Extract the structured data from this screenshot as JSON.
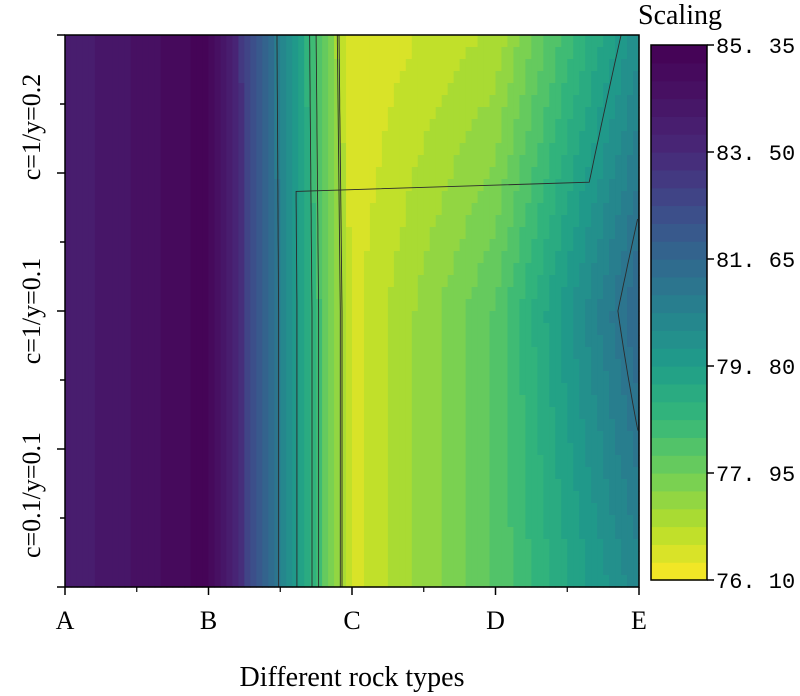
{
  "chart_data": {
    "type": "heatmap",
    "title": "",
    "xlabel": "Different rock types",
    "ylabel": "",
    "x_categories": [
      "A",
      "B",
      "C",
      "D",
      "E"
    ],
    "y_categories": [
      "c=0.1/y=0.1",
      "c=1/y=0.1",
      "c=1/y=0.2"
    ],
    "z": [
      [
        83.8,
        85.2,
        76.6,
        78.3,
        80.6
      ],
      [
        83.8,
        85.2,
        76.6,
        78.3,
        81.7
      ],
      [
        83.8,
        85.2,
        76.4,
        77.1,
        80.3
      ]
    ],
    "colorbar": {
      "title": "Scaling",
      "min": 76.1,
      "max": 85.35,
      "tick_labels": [
        "85. 35",
        "83. 50",
        "81. 65",
        "79. 80",
        "77. 95",
        "76. 10"
      ],
      "tick_values": [
        85.35,
        83.5,
        81.65,
        79.8,
        77.95,
        76.1
      ],
      "colormap": "viridis_r",
      "levels": 30
    },
    "grid": false,
    "legend": "none"
  }
}
